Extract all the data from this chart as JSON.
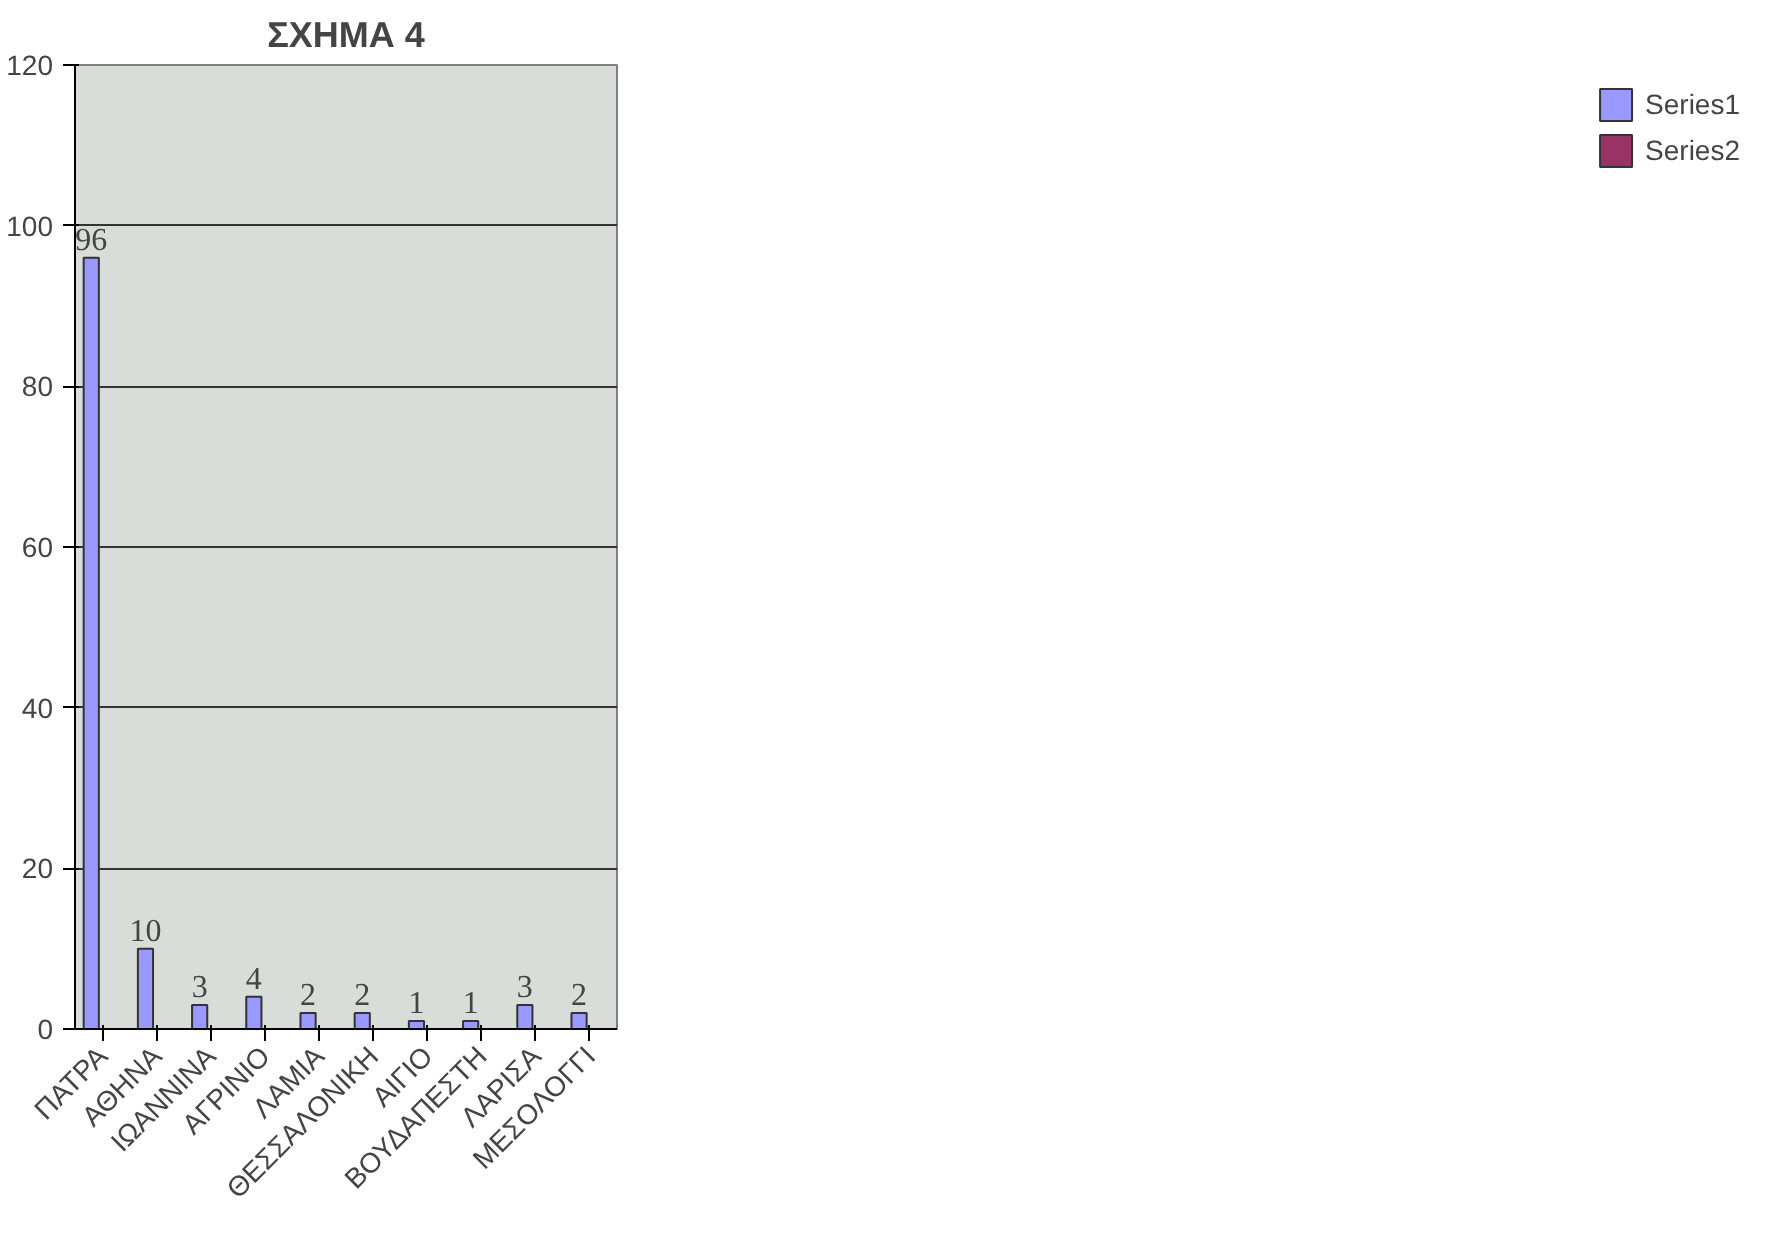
{
  "chart_data": {
    "type": "bar",
    "title": "ΣΧΗΜΑ 4",
    "categories": [
      "ΠΑΤΡΑ",
      "ΑΘΗΝΑ",
      "ΙΩΑΝΝΙΝΑ",
      "ΑΓΡΙΝΙΟ",
      "ΛΑΜΙΑ",
      "ΘΕΣΣΑΛΟΝΙΚΗ",
      "ΑΙΓΙΟ",
      "ΒΟΥΔΑΠΕΣΤΗ",
      "ΛΑΡΙΣΑ",
      "ΜΕΣΟΛΟΓΓΙ"
    ],
    "series": [
      {
        "name": "Series1",
        "color": "#9999ff",
        "values": [
          96,
          10,
          3,
          4,
          2,
          2,
          1,
          1,
          3,
          2
        ]
      },
      {
        "name": "Series2",
        "color": "#993366",
        "values": [
          null,
          null,
          null,
          null,
          null,
          null,
          null,
          null,
          null,
          null
        ]
      }
    ],
    "ylim": [
      0,
      120
    ],
    "yticks": [
      0,
      20,
      40,
      60,
      80,
      100,
      120
    ],
    "grid": "y",
    "legend": "right",
    "data_labels": true
  }
}
